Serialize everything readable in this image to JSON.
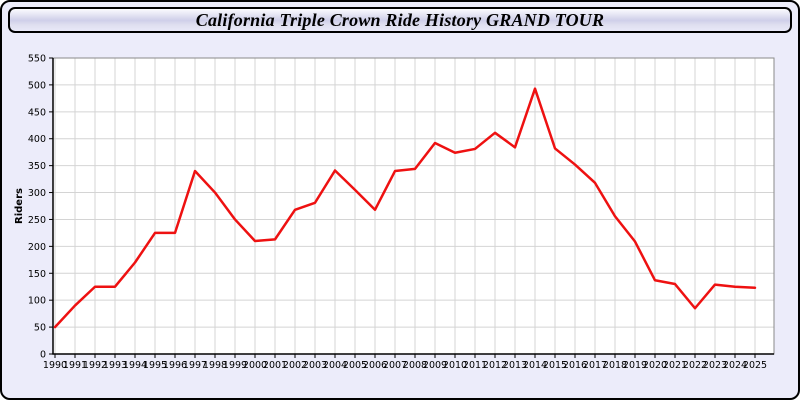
{
  "title_bar": {
    "title": "California Triple Crown Ride History GRAND TOUR"
  },
  "colors": {
    "panel_bg": "#ececfa",
    "plot_bg": "#ffffff",
    "grid": "#d4d4d4",
    "frame": "#8a8a8a",
    "axis": "#000000",
    "line": "#ee1111"
  },
  "chart_data": {
    "type": "line",
    "title": "California Triple Crown Ride History GRAND TOUR",
    "xlabel": "",
    "ylabel": "Riders",
    "ylim": [
      0,
      550
    ],
    "ytick_step": 50,
    "grid": true,
    "legend": "none",
    "x": [
      1990,
      1991,
      1992,
      1993,
      1994,
      1995,
      1996,
      1997,
      1998,
      1999,
      2000,
      2001,
      2002,
      2003,
      2004,
      2005,
      2006,
      2007,
      2008,
      2009,
      2010,
      2011,
      2012,
      2013,
      2014,
      2015,
      2016,
      2017,
      2018,
      2019,
      2020,
      2021,
      2022,
      2023,
      2024,
      2025
    ],
    "series": [
      {
        "name": "Riders",
        "color": "#ee1111",
        "values": [
          50,
          90,
          125,
          125,
          170,
          225,
          225,
          340,
          300,
          250,
          210,
          213,
          268,
          281,
          341,
          305,
          268,
          340,
          344,
          392,
          374,
          381,
          411,
          384,
          493,
          382,
          352,
          318,
          256,
          209,
          137,
          130,
          85,
          129,
          125,
          123
        ]
      }
    ]
  }
}
